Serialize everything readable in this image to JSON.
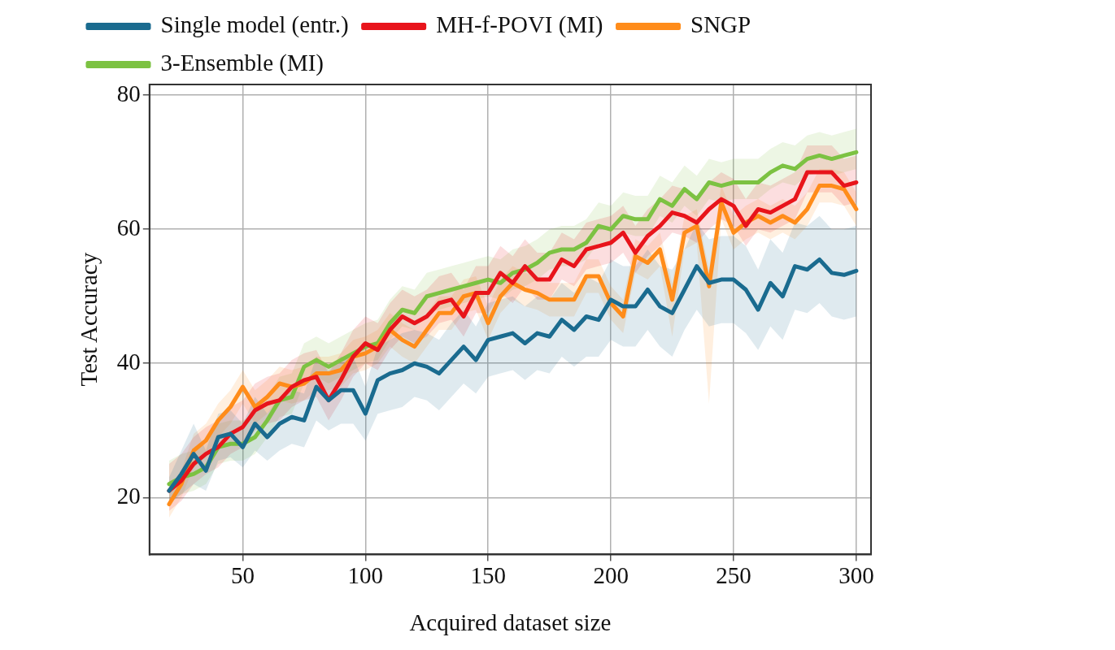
{
  "chart_data": {
    "type": "line",
    "xlabel": "Acquired dataset size",
    "ylabel": "Test Accuracy",
    "x": [
      20,
      25,
      30,
      35,
      40,
      45,
      50,
      55,
      60,
      65,
      70,
      75,
      80,
      85,
      90,
      95,
      100,
      105,
      110,
      115,
      120,
      125,
      130,
      135,
      140,
      145,
      150,
      155,
      160,
      165,
      170,
      175,
      180,
      185,
      190,
      195,
      200,
      205,
      210,
      215,
      220,
      225,
      230,
      235,
      240,
      245,
      250,
      255,
      260,
      265,
      270,
      275,
      280,
      285,
      290,
      295,
      300
    ],
    "xlim": [
      12,
      306
    ],
    "xticks": [
      50,
      100,
      150,
      200,
      250,
      300
    ],
    "ylim": [
      11.5,
      81.6
    ],
    "yticks": [
      20,
      40,
      60,
      80
    ],
    "grid": true,
    "legend": "top",
    "marker": "none",
    "line_style": "solid",
    "series": [
      {
        "name": "Single model (entr.)",
        "color": "#1a6b8f",
        "values": [
          21,
          23.5,
          26.5,
          24,
          29,
          29.5,
          27.5,
          31,
          29,
          31,
          32,
          31.5,
          36.5,
          34.5,
          36,
          36,
          32.5,
          37.5,
          38.5,
          39,
          40,
          39.5,
          38.5,
          40.5,
          42.5,
          40.5,
          43.5,
          44,
          44.5,
          43,
          44.5,
          44,
          46.5,
          45,
          47,
          46.5,
          49.5,
          48.5,
          48.5,
          51,
          48.5,
          47.5,
          51,
          54.5,
          52,
          52.5,
          52.5,
          51,
          48,
          52,
          50,
          54.5,
          54,
          55.5,
          53.5,
          53.2,
          53.8
        ],
        "lower": [
          19,
          20.5,
          22,
          21,
          25.5,
          26,
          24.5,
          27,
          25.5,
          27,
          28,
          27.5,
          31.5,
          30,
          31,
          31,
          28.5,
          32.5,
          33,
          33.5,
          35,
          34.5,
          33,
          35,
          37,
          35.5,
          38,
          38.5,
          39,
          37.5,
          39,
          38.5,
          41,
          39.5,
          41,
          41,
          43.5,
          42.5,
          42.5,
          45,
          42.5,
          41,
          45,
          48,
          45.5,
          46,
          46,
          44.5,
          42,
          45.5,
          43.5,
          48,
          47.5,
          49,
          47,
          46.5,
          47
        ],
        "upper": [
          23,
          27,
          31,
          27,
          32.5,
          33,
          31,
          35,
          32.5,
          35,
          36,
          35.5,
          41,
          39,
          41,
          41,
          36.5,
          42.5,
          43.5,
          44.5,
          45,
          44.5,
          43.5,
          46,
          48,
          45.5,
          49,
          49.5,
          50,
          48.5,
          50,
          49.5,
          52,
          50.5,
          53,
          52,
          55.5,
          54.5,
          54.5,
          57,
          54.5,
          54,
          57,
          61,
          58.5,
          59,
          59,
          57.5,
          54,
          58.5,
          56.5,
          61,
          60.5,
          62,
          60,
          60,
          60.5
        ]
      },
      {
        "name": "MH-f-POVI (MI)",
        "color": "#e8141b",
        "values": [
          21,
          22.5,
          25,
          26.5,
          27.5,
          29.5,
          30.5,
          33,
          34,
          34.5,
          36.5,
          37.5,
          38,
          34.5,
          37.5,
          41,
          43,
          42,
          45,
          47,
          46,
          47,
          49,
          49.5,
          47,
          50.5,
          50.5,
          53.5,
          52,
          54.5,
          52.5,
          52.5,
          55.5,
          54.5,
          57,
          57.5,
          58,
          59.5,
          56.5,
          59,
          60.5,
          62.5,
          62,
          61,
          63,
          64.5,
          63.5,
          60.5,
          63,
          62.5,
          63.5,
          64.5,
          68.5,
          68.5,
          68.5,
          66.5,
          67
        ],
        "lower": [
          18,
          19.5,
          22,
          23.5,
          24.5,
          26.5,
          27.5,
          30,
          31,
          31.5,
          33.5,
          34.5,
          35,
          31.5,
          34.5,
          38,
          40,
          39,
          42,
          44,
          43,
          44,
          46,
          46.5,
          44,
          47.5,
          47.5,
          50.5,
          49,
          51.5,
          49.5,
          49.5,
          52.5,
          51.5,
          54,
          54.5,
          55,
          56.5,
          53.5,
          56,
          57.5,
          59.5,
          59,
          58,
          60,
          61.5,
          60.5,
          57.5,
          60,
          59.5,
          60.5,
          61.5,
          65.5,
          65.5,
          65.5,
          63.5,
          64
        ],
        "upper": [
          25,
          26.5,
          29,
          30.5,
          31.5,
          33.5,
          34.5,
          37,
          38,
          38.5,
          40.5,
          41.5,
          42,
          38.5,
          41.5,
          45,
          47,
          46,
          49,
          51,
          50,
          51,
          53,
          53.5,
          51,
          54.5,
          54.5,
          57.5,
          56,
          58.5,
          56.5,
          56.5,
          59.5,
          58.5,
          61,
          61.5,
          62,
          63.5,
          60.5,
          63,
          64.5,
          66.5,
          66,
          65,
          67,
          68.5,
          67.5,
          64.5,
          67,
          66.5,
          67.5,
          68.5,
          72.5,
          72.5,
          72.5,
          70.5,
          71
        ]
      },
      {
        "name": "SNGP",
        "color": "#ff8c1a",
        "values": [
          19,
          22,
          27,
          28.5,
          31.5,
          33.5,
          36.5,
          33.5,
          35,
          37,
          36.5,
          37,
          38.5,
          38.5,
          39,
          41,
          41.5,
          42.5,
          45,
          43.5,
          42.5,
          45,
          47.5,
          47.5,
          50,
          50.5,
          46,
          50,
          52,
          51,
          50.5,
          49.5,
          49.5,
          49.5,
          53,
          53,
          49,
          47,
          56,
          55,
          57,
          49.5,
          59.5,
          60.5,
          51.5,
          64,
          59.5,
          61,
          62,
          61,
          62,
          61,
          63,
          66.5,
          66.5,
          66,
          63
        ],
        "lower": [
          17,
          20,
          24.5,
          26,
          29,
          31,
          34,
          31,
          32.5,
          34.5,
          34,
          34.5,
          36,
          36,
          36.5,
          38.5,
          39,
          40,
          42.5,
          41,
          40,
          42.5,
          45,
          45,
          47.5,
          48,
          43.5,
          47.5,
          49.5,
          48.5,
          48,
          47,
          47,
          47,
          50.5,
          50.5,
          46.5,
          44.5,
          53.5,
          52.5,
          54.5,
          44,
          57,
          58,
          34,
          61.5,
          57,
          58.5,
          59.5,
          58.5,
          59.5,
          58.5,
          60.5,
          64,
          64,
          63.5,
          60.5
        ],
        "upper": [
          21,
          24,
          29.5,
          31,
          34,
          36,
          39,
          36,
          37.5,
          39.5,
          39,
          39.5,
          41,
          41,
          41.5,
          43.5,
          44,
          45,
          47.5,
          46,
          45,
          47.5,
          50,
          50,
          52.5,
          53,
          48.5,
          52.5,
          54.5,
          53.5,
          53,
          52,
          52,
          52,
          55.5,
          55.5,
          51.5,
          49.5,
          58.5,
          57.5,
          59.5,
          52,
          62,
          63,
          54,
          66.5,
          62,
          63.5,
          64.5,
          63.5,
          64.5,
          63.5,
          65.5,
          69,
          69,
          68.5,
          65.5
        ]
      },
      {
        "name": "3-Ensemble (MI)",
        "color": "#7cc242",
        "values": [
          22,
          23,
          23.5,
          24.5,
          27.5,
          28,
          28,
          29,
          31.5,
          34.5,
          35,
          39.5,
          40.5,
          39.5,
          40.5,
          41.5,
          42.5,
          43,
          46,
          48,
          47.5,
          50,
          50.5,
          51,
          51.5,
          52,
          52.5,
          52,
          53.5,
          54,
          55,
          56.5,
          57,
          57,
          58,
          60.5,
          60,
          62,
          61.5,
          61.5,
          64.5,
          63.5,
          66,
          64.5,
          67,
          66.5,
          67,
          67,
          67,
          68.5,
          69.5,
          69,
          70.5,
          71,
          70.5,
          71,
          71.5
        ],
        "lower": [
          19.5,
          20.5,
          21,
          22,
          25,
          25.5,
          25.5,
          26.5,
          29,
          32,
          32.5,
          37,
          38,
          37,
          38,
          39,
          40,
          40.5,
          43.5,
          45.5,
          45,
          47.5,
          48,
          48.5,
          49,
          49.5,
          50,
          49.5,
          51,
          51.5,
          52.5,
          54,
          54.5,
          54.5,
          55.5,
          58,
          57.5,
          59.5,
          59,
          59,
          62,
          61,
          63.5,
          62,
          64.5,
          64,
          64.5,
          64.5,
          64.5,
          66,
          67,
          66.5,
          68,
          68.5,
          68,
          68.5,
          69
        ],
        "upper": [
          25.5,
          26.5,
          27,
          28,
          31,
          31.5,
          31.5,
          32.5,
          35,
          38,
          38.5,
          43,
          44,
          43,
          44,
          45,
          46,
          46.5,
          49.5,
          51.5,
          51,
          53.5,
          54,
          54.5,
          55,
          55.5,
          56,
          55.5,
          57,
          57.5,
          58.5,
          60,
          60.5,
          60.5,
          61.5,
          64,
          63.5,
          65.5,
          65,
          65,
          68,
          67,
          69.5,
          68,
          70.5,
          70,
          70.5,
          70.5,
          70.5,
          72,
          73,
          72.5,
          74,
          74.5,
          74,
          74.5,
          75
        ]
      }
    ]
  }
}
